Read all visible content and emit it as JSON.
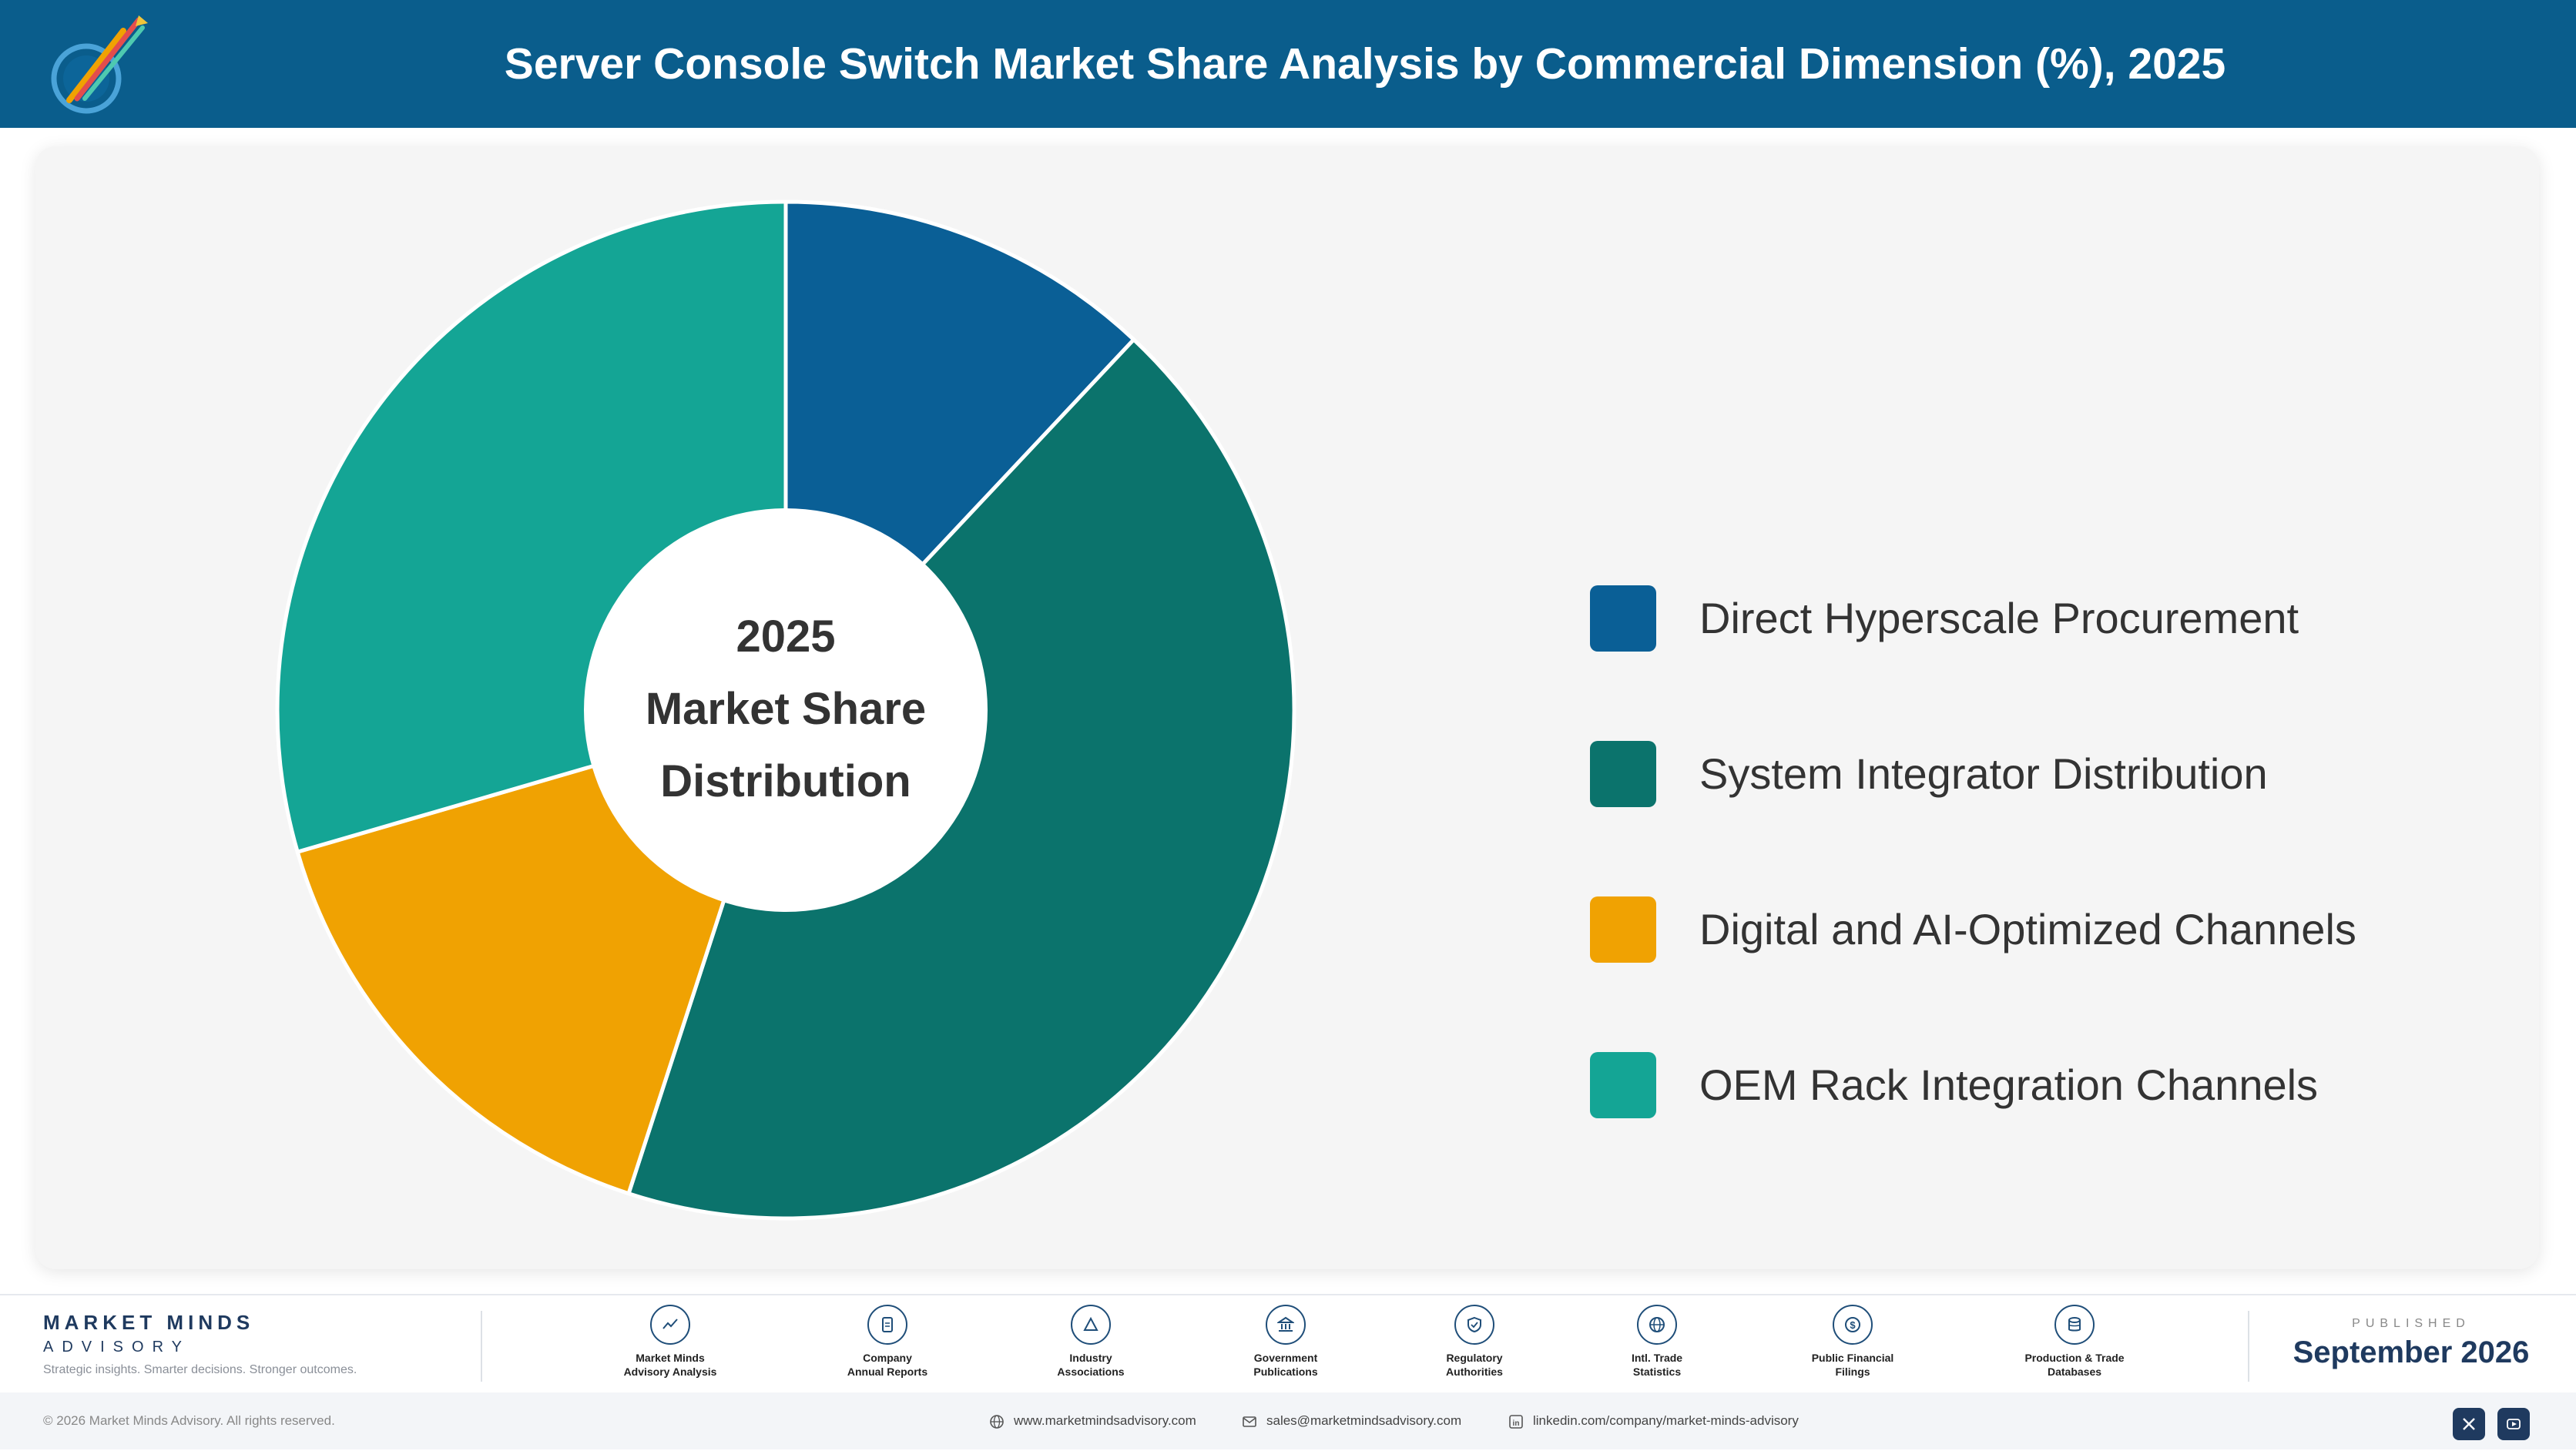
{
  "header": {
    "title": "Server Console Switch Market Share Analysis by Commercial Dimension (%), 2025"
  },
  "chart_data": {
    "type": "pie",
    "style": "donut",
    "title": "Server Console Switch Market Share Analysis by Commercial Dimension (%), 2025",
    "center_label": [
      "2025",
      "Market Share",
      "Distribution"
    ],
    "legend_position": "right",
    "series": [
      {
        "name": "Direct Hyperscale Procurement",
        "value": 12.0,
        "color": "#0a5f96"
      },
      {
        "name": "System Integrator Distribution",
        "value": 43.0,
        "color": "#0b736c"
      },
      {
        "name": "Digital and AI-Optimized Channels",
        "value": 15.5,
        "color": "#f0a202"
      },
      {
        "name": "OEM Rack Integration Channels",
        "value": 29.5,
        "color": "#14a595"
      }
    ]
  },
  "footer": {
    "brand_name": "MARKET MINDS",
    "brand_sub": "ADVISORY",
    "brand_tagline": "Strategic insights. Smarter decisions. Stronger outcomes.",
    "sources": [
      {
        "label": "Market Minds\nAdvisory Analysis",
        "icon": "chart-line-icon"
      },
      {
        "label": "Company\nAnnual Reports",
        "icon": "document-icon"
      },
      {
        "label": "Industry\nAssociations",
        "icon": "network-icon"
      },
      {
        "label": "Government\nPublications",
        "icon": "building-icon"
      },
      {
        "label": "Regulatory\nAuthorities",
        "icon": "shield-icon"
      },
      {
        "label": "Intl. Trade\nStatistics",
        "icon": "globe-icon"
      },
      {
        "label": "Public Financial\nFilings",
        "icon": "coin-icon"
      },
      {
        "label": "Production & Trade\nDatabases",
        "icon": "database-icon"
      }
    ],
    "published_label": "PUBLISHED",
    "published_date": "September 2026",
    "copyright": "© 2026 Market Minds Advisory. All rights reserved.",
    "website": "www.marketmindsadvisory.com",
    "email": "sales@marketmindsadvisory.com",
    "linkedin": "linkedin.com/company/market-minds-advisory"
  }
}
